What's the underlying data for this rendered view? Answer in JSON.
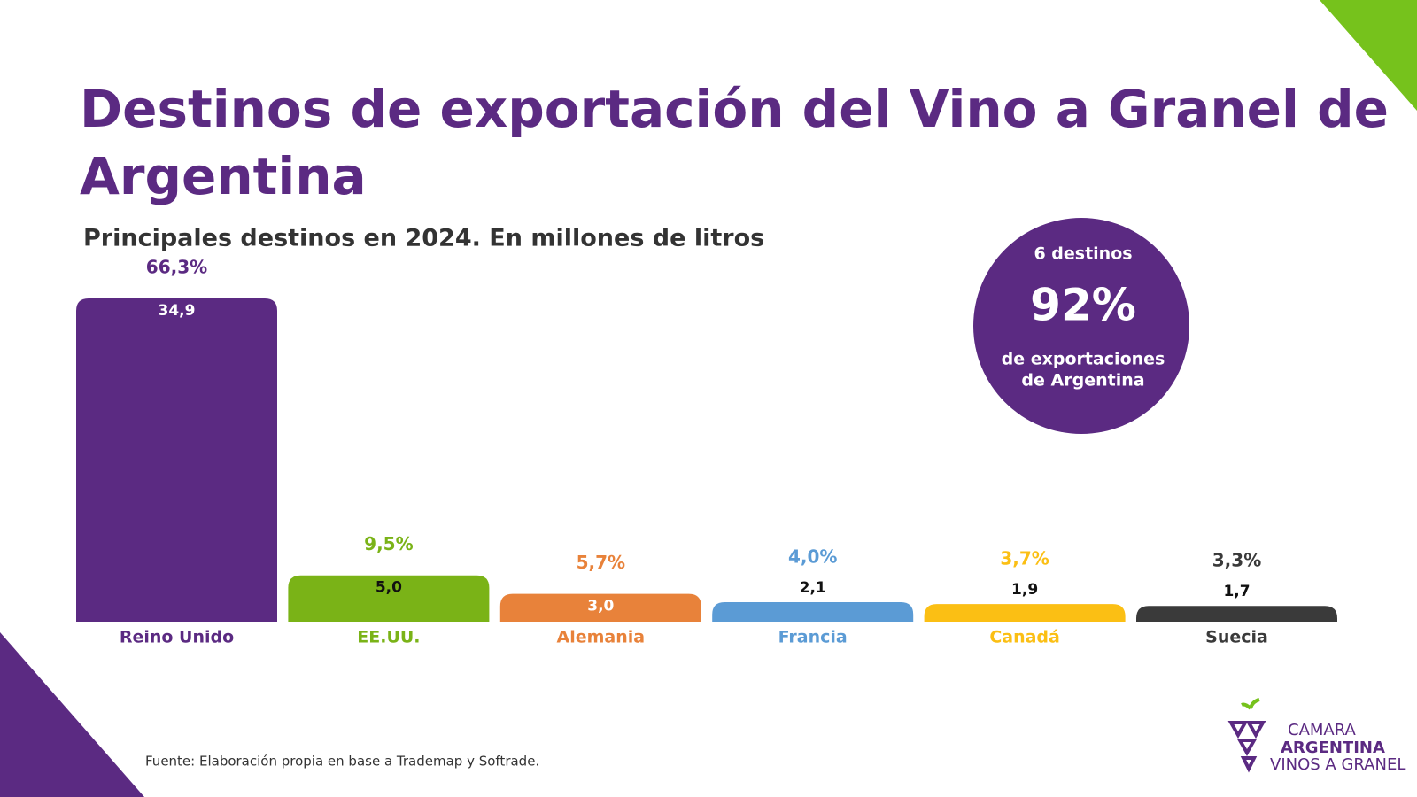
{
  "chart_data": {
    "type": "bar",
    "title": "Destinos de exportación del Vino a Granel de Argentina",
    "subtitle": "Principales destinos en 2024. En millones de litros",
    "categories": [
      "Reino Unido",
      "EE.UU.",
      "Alemania",
      "Francia",
      "Canadá",
      "Suecia"
    ],
    "values": [
      34.9,
      5.0,
      3.0,
      2.1,
      1.9,
      1.7
    ],
    "value_labels": [
      "34,9",
      "5,0",
      "3,0",
      "2,1",
      "1,9",
      "1,7"
    ],
    "share_labels": [
      "66,3%",
      "9,5%",
      "5,7%",
      "4,0%",
      "3,7%",
      "3,3%"
    ],
    "colors": [
      "#5b2a82",
      "#7ab317",
      "#e8823a",
      "#5b9bd5",
      "#fbbf14",
      "#3a3a3a"
    ],
    "inside_label_colors": [
      "#ffffff",
      "#111111",
      "#ffffff",
      "#111111",
      "#111111",
      "#111111"
    ],
    "callout": {
      "top": "6 destinos",
      "big": "92%",
      "line1": "de exportaciones",
      "line2": "de Argentina"
    },
    "source": "Fuente: Elaboración propia en base a Trademap y Softrade.",
    "logo": {
      "line1": "CAMARA",
      "line2": "ARGENTINA",
      "line3": "VINOS A GRANEL"
    }
  }
}
